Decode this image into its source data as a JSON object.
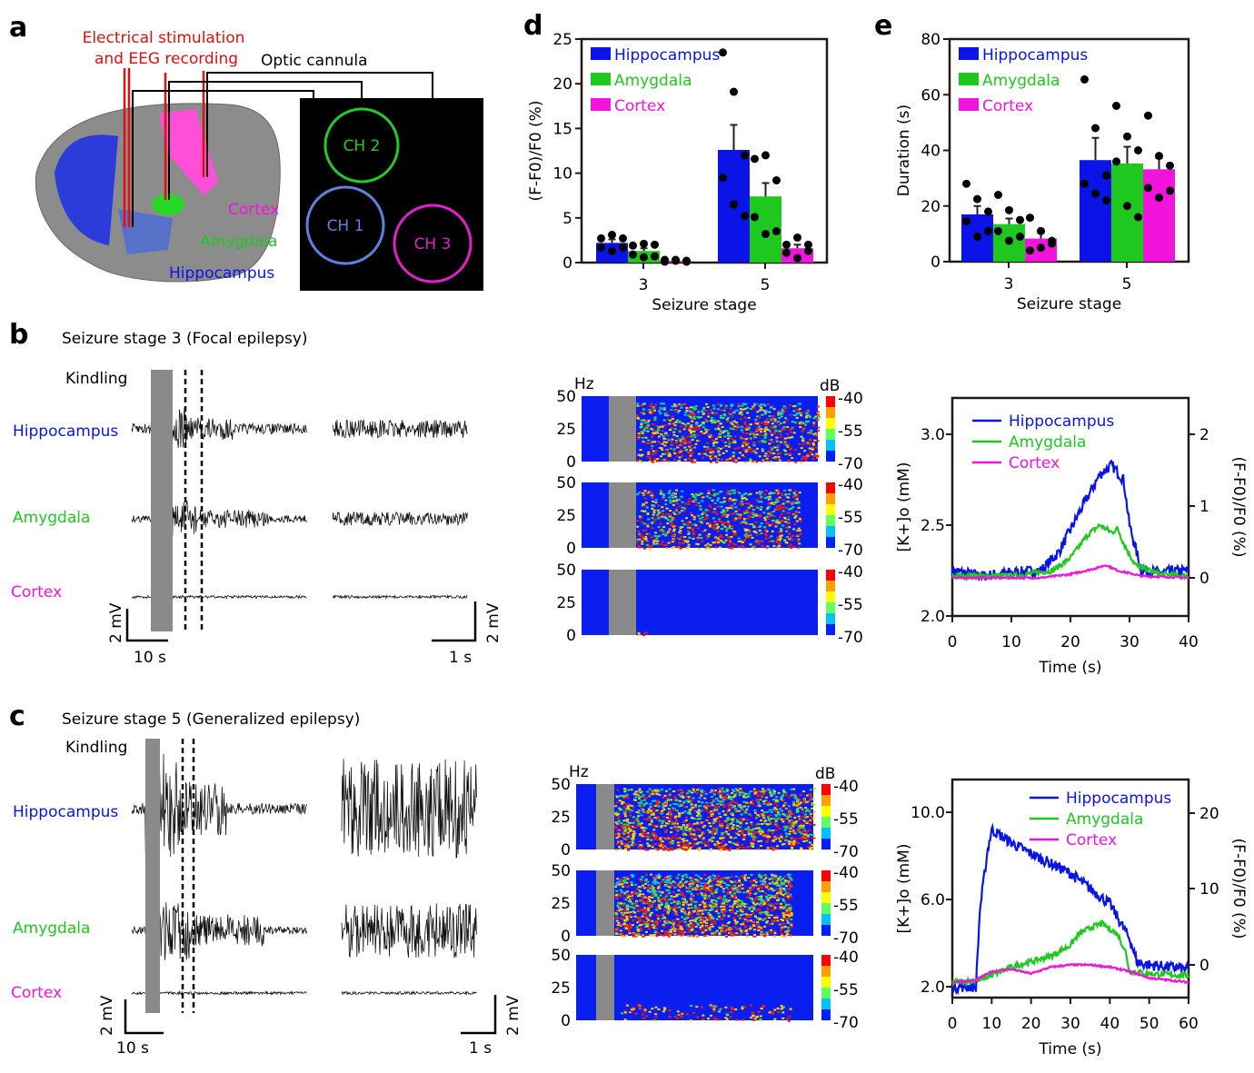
{
  "colors": {
    "hippocampus": "#0a14e6",
    "amygdala": "#1ec81e",
    "cortex": "#f014dc",
    "stim": "#e01010",
    "gray": "#8a8a8a",
    "spec_bg": "#0a1ef0"
  },
  "panel_labels": [
    "a",
    "b",
    "c",
    "d",
    "e"
  ],
  "panel_a": {
    "stim_label_1": "Electrical stimulation",
    "stim_label_2": "and EEG recording",
    "cannula_label": "Optic cannula",
    "ch1": "CH 1",
    "ch2": "CH 2",
    "ch3": "CH 3",
    "cortex": "Cortex",
    "amygdala": "Amygdala",
    "hippocampus": "Hippocampus"
  },
  "panel_b": {
    "title": "Seizure stage 3 (Focal epilepsy)",
    "kindling": "Kindling",
    "rows": [
      "Hippocampus",
      "Amygdala",
      "Cortex"
    ],
    "scale_v": "2 mV",
    "scale_t1": "10 s",
    "scale_t2": "1 s",
    "spec": {
      "y_unit": "Hz",
      "c_unit": "dB",
      "y_ticks": [
        "50",
        "25",
        "0"
      ],
      "c_ticks": [
        "-40",
        "-55",
        "-70"
      ]
    }
  },
  "panel_c": {
    "title": "Seizure stage 5 (Generalized epilepsy)",
    "kindling": "Kindling",
    "rows": [
      "Hippocampus",
      "Amygdala",
      "Cortex"
    ],
    "scale_v": "2 mV",
    "scale_t1": "10 s",
    "scale_t2": "1 s",
    "spec": {
      "y_unit": "Hz",
      "c_unit": "dB",
      "y_ticks": [
        "50",
        "25",
        "0"
      ],
      "c_ticks": [
        "-40",
        "-55",
        "-70"
      ]
    }
  },
  "chart_data": [
    {
      "id": "d",
      "type": "bar",
      "ylabel": "(F-F0)/F0 (%)",
      "xlabel": "Seizure stage",
      "categories": [
        "3",
        "5"
      ],
      "ylim": [
        0,
        25
      ],
      "yticks": [
        "0",
        "5",
        "10",
        "15",
        "20",
        "25"
      ],
      "legend": "top-left",
      "series": [
        {
          "name": "Hippocampus",
          "values": [
            2.2,
            12.6
          ],
          "sem": [
            0.4,
            2.8
          ],
          "points": [
            [
              2.7,
              3.1,
              2.7,
              1.7,
              1.3,
              1.7
            ],
            [
              23.5,
              19.1,
              12,
              9.5,
              6.5,
              5.2
            ]
          ]
        },
        {
          "name": "Amygdala",
          "values": [
            1.3,
            7.4
          ],
          "sem": [
            0.3,
            1.5
          ],
          "points": [
            [
              1.9,
              2.1,
              2.0,
              0.9,
              0.6,
              0.7
            ],
            [
              11.6,
              12,
              9.2,
              5.1,
              3.2,
              3.5
            ]
          ]
        },
        {
          "name": "Cortex",
          "values": [
            0.2,
            1.6
          ],
          "sem": [
            0.05,
            0.4
          ],
          "points": [
            [
              0.3,
              0.3,
              0.2,
              0.1,
              0.2,
              0.1
            ],
            [
              2,
              2.8,
              2,
              1.1,
              0.5,
              1.3
            ]
          ]
        }
      ]
    },
    {
      "id": "e",
      "type": "bar",
      "ylabel": "Duration (s)",
      "xlabel": "Seizure stage",
      "categories": [
        "3",
        "5"
      ],
      "ylim": [
        0,
        80
      ],
      "yticks": [
        "0",
        "20",
        "40",
        "60",
        "80"
      ],
      "legend": "top-left",
      "series": [
        {
          "name": "Hippocampus",
          "values": [
            17,
            36.5
          ],
          "sem": [
            3,
            8
          ],
          "points": [
            [
              28,
              22.5,
              18,
              14.5,
              9,
              11
            ],
            [
              65.5,
              48,
              31,
              28,
              24.5,
              22
            ]
          ]
        },
        {
          "name": "Amygdala",
          "values": [
            13.5,
            35.3
          ],
          "sem": [
            2,
            6
          ],
          "points": [
            [
              24,
              18.5,
              15,
              11,
              7.5,
              9
            ],
            [
              56,
              45,
              40,
              36,
              20,
              16
            ]
          ]
        },
        {
          "name": "Cortex",
          "values": [
            8.3,
            33.2
          ],
          "sem": [
            2,
            4
          ],
          "points": [
            [
              15.8,
              11,
              7.5,
              4,
              5,
              6.5
            ],
            [
              52.5,
              38,
              34.5,
              26.5,
              23,
              25.5
            ]
          ]
        }
      ]
    },
    {
      "id": "b-line",
      "type": "line",
      "xlabel": "Time (s)",
      "ylabel": "[K+]o (mM)",
      "y2label": "(F-F0)/F0 (%)",
      "xlim": [
        0,
        40
      ],
      "ylim": [
        2.0,
        3.2
      ],
      "xticks": [
        "0",
        "10",
        "20",
        "30",
        "40"
      ],
      "yticks": [
        "2.0",
        "2.5",
        "3.0"
      ],
      "y2ticks": [
        "0",
        "1",
        "2"
      ],
      "legend": "top-left",
      "series": [
        {
          "name": "Hippocampus",
          "x": [
            0,
            5,
            10,
            15,
            18,
            22,
            25,
            27,
            29,
            30,
            32,
            35,
            40
          ],
          "y": [
            2.25,
            2.22,
            2.24,
            2.25,
            2.35,
            2.6,
            2.78,
            2.83,
            2.75,
            2.5,
            2.25,
            2.24,
            2.25
          ]
        },
        {
          "name": "Amygdala",
          "x": [
            0,
            10,
            17,
            20,
            23,
            25,
            27,
            28,
            29,
            31,
            35,
            40
          ],
          "y": [
            2.22,
            2.22,
            2.25,
            2.32,
            2.45,
            2.5,
            2.46,
            2.48,
            2.4,
            2.28,
            2.23,
            2.22
          ]
        },
        {
          "name": "Cortex",
          "x": [
            0,
            15,
            20,
            24,
            26,
            28,
            32,
            40
          ],
          "y": [
            2.21,
            2.21,
            2.23,
            2.26,
            2.28,
            2.25,
            2.22,
            2.21
          ]
        }
      ]
    },
    {
      "id": "c-line",
      "type": "line",
      "xlabel": "Time (s)",
      "ylabel": "[K+]o (mM)",
      "y2label": "(F-F0)/F0 (%)",
      "xlim": [
        0,
        60
      ],
      "ylim": [
        1.5,
        11.5
      ],
      "xticks": [
        "0",
        "10",
        "20",
        "30",
        "40",
        "50",
        "60"
      ],
      "yticks": [
        "2.0",
        "6.0",
        "10.0"
      ],
      "y2ticks": [
        "0",
        "10",
        "20"
      ],
      "legend": "top-right",
      "series": [
        {
          "name": "Hippocampus",
          "x": [
            0,
            6,
            7,
            9,
            10,
            15,
            20,
            30,
            40,
            45,
            47,
            50,
            60
          ],
          "y": [
            2.0,
            2.0,
            5.5,
            8.3,
            9.2,
            8.6,
            8.1,
            7.2,
            5.8,
            4.2,
            3.1,
            3.0,
            2.8
          ]
        },
        {
          "name": "Amygdala",
          "x": [
            0,
            7,
            15,
            25,
            30,
            32,
            35,
            38,
            42,
            44,
            45,
            50,
            60
          ],
          "y": [
            2.2,
            2.3,
            2.9,
            3.4,
            3.9,
            4.4,
            4.7,
            4.9,
            4.4,
            3.6,
            2.7,
            2.6,
            2.5
          ]
        },
        {
          "name": "Cortex",
          "x": [
            0,
            6,
            10,
            15,
            20,
            25,
            30,
            35,
            40,
            45,
            50,
            60
          ],
          "y": [
            2.2,
            2.3,
            2.7,
            2.8,
            2.6,
            2.9,
            3.0,
            3.0,
            2.9,
            2.7,
            2.4,
            2.2
          ]
        }
      ]
    }
  ]
}
